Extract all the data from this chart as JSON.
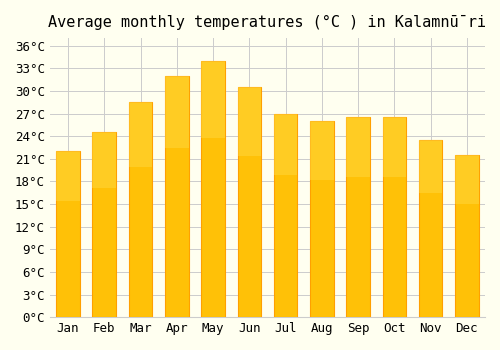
{
  "title": "Average monthly temperatures (°C ) in Kalamnū̄ri",
  "months": [
    "Jan",
    "Feb",
    "Mar",
    "Apr",
    "May",
    "Jun",
    "Jul",
    "Aug",
    "Sep",
    "Oct",
    "Nov",
    "Dec"
  ],
  "temperatures": [
    22,
    24.5,
    28.5,
    32,
    34,
    30.5,
    27,
    26,
    26.5,
    26.5,
    23.5,
    21.5
  ],
  "bar_color_face": "#FFC107",
  "bar_color_edge": "#FFA000",
  "background_color": "#FFFFF0",
  "grid_color": "#CCCCCC",
  "ylim": [
    0,
    37
  ],
  "yticks": [
    0,
    3,
    6,
    9,
    12,
    15,
    18,
    21,
    24,
    27,
    30,
    33,
    36
  ],
  "ytick_labels": [
    "0°C",
    "3°C",
    "6°C",
    "9°C",
    "12°C",
    "15°C",
    "18°C",
    "21°C",
    "24°C",
    "27°C",
    "30°C",
    "33°C",
    "36°C"
  ],
  "title_fontsize": 11,
  "tick_fontsize": 9,
  "font_family": "monospace"
}
